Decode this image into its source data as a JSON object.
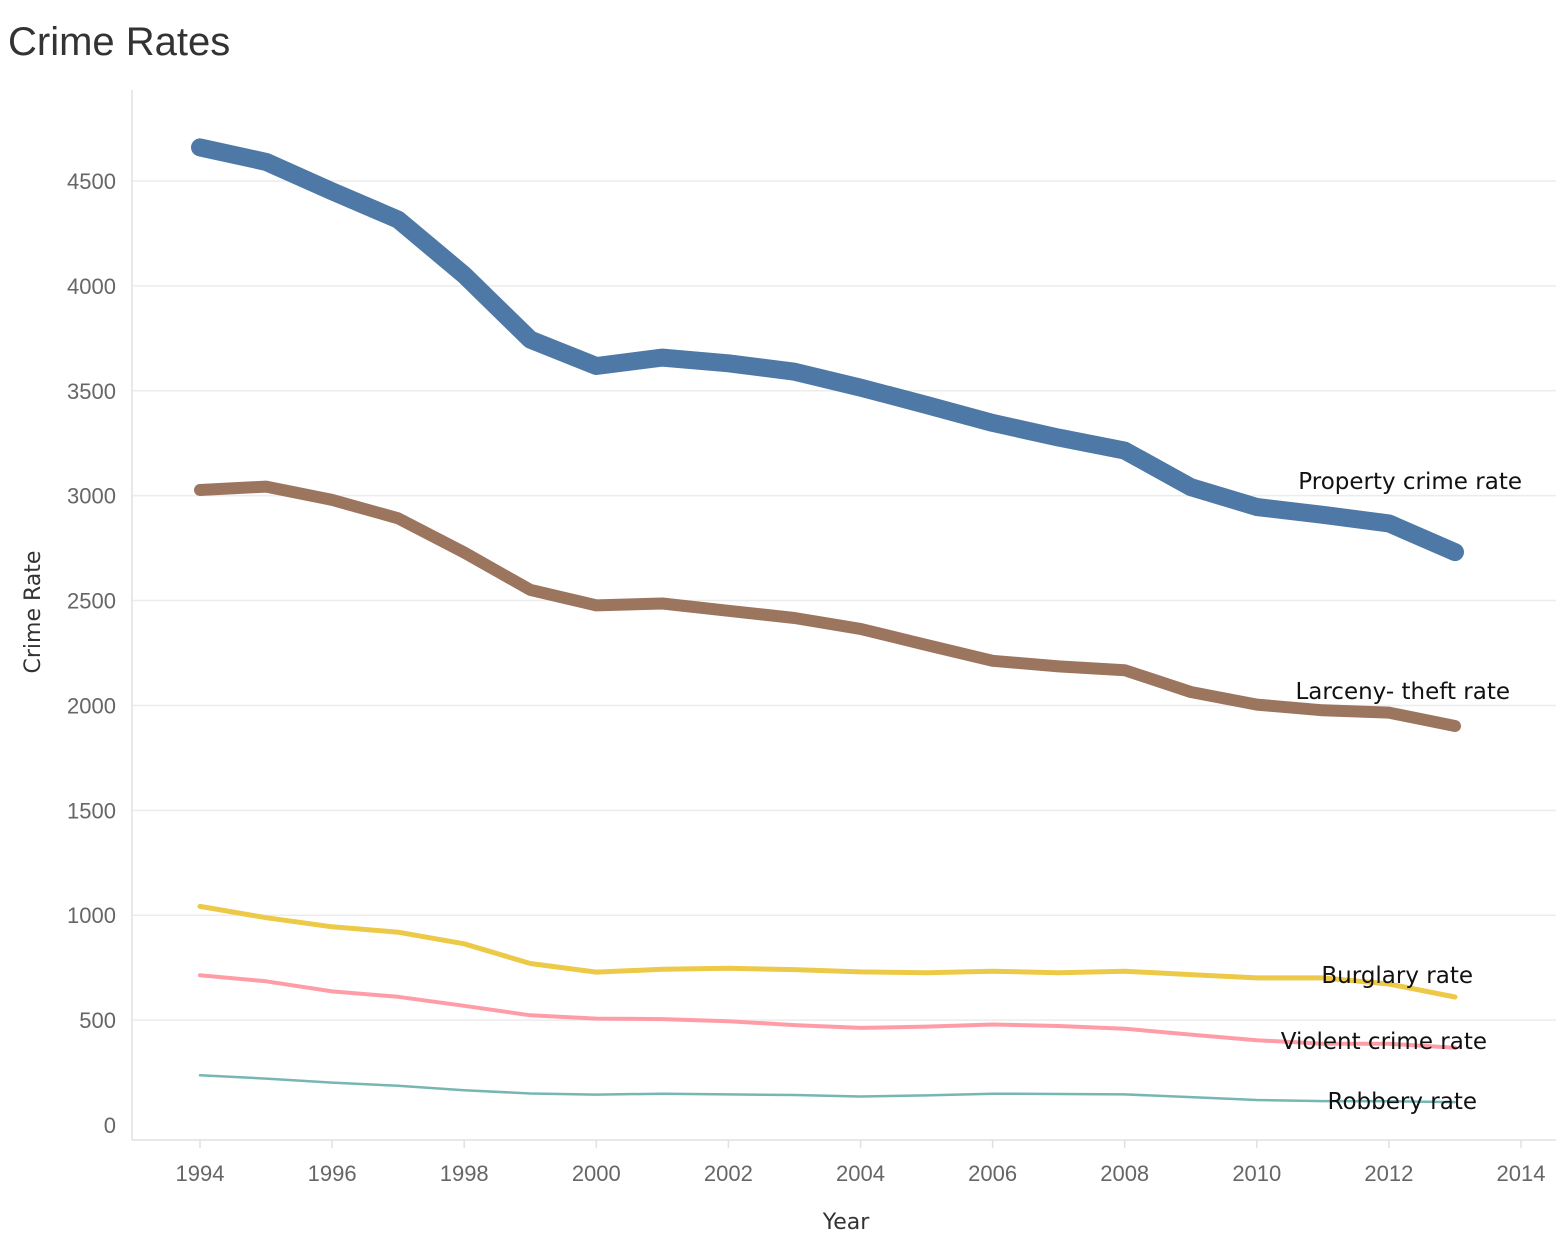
{
  "chart_data": {
    "type": "line",
    "title": "Crime Rates",
    "xlabel": "Year",
    "ylabel": "Crime Rate",
    "x": [
      1994,
      1995,
      1996,
      1997,
      1998,
      1999,
      2000,
      2001,
      2002,
      2003,
      2004,
      2005,
      2006,
      2007,
      2008,
      2009,
      2010,
      2011,
      2012,
      2013
    ],
    "xlim": [
      1993,
      2014
    ],
    "ylim": [
      0,
      4650
    ],
    "x_ticks": [
      1994,
      1996,
      1998,
      2000,
      2002,
      2004,
      2006,
      2008,
      2010,
      2012,
      2014
    ],
    "y_ticks": [
      0,
      500,
      1000,
      1500,
      2000,
      2500,
      3000,
      3500,
      4000,
      4500
    ],
    "grid": true,
    "legend": "direct labels at line ends",
    "series": [
      {
        "name": "Property crime rate",
        "color": "#4e79a7",
        "values": [
          4660,
          4591,
          4451,
          4316,
          4052,
          3744,
          3618,
          3658,
          3631,
          3591,
          3515,
          3432,
          3347,
          3277,
          3215,
          3041,
          2946,
          2909,
          2868,
          2731
        ]
      },
      {
        "name": "Larceny- theft rate",
        "color": "#9c755f",
        "values": [
          3027,
          3043,
          2980,
          2892,
          2729,
          2551,
          2477,
          2486,
          2451,
          2417,
          2365,
          2288,
          2213,
          2186,
          2168,
          2064,
          2004,
          1977,
          1966,
          1902
        ]
      },
      {
        "name": "Burglary rate",
        "color": "#edc948",
        "values": [
          1042,
          988,
          945,
          919,
          864,
          770,
          729,
          742,
          747,
          741,
          730,
          726,
          733,
          726,
          733,
          717,
          701,
          701,
          672,
          610
        ]
      },
      {
        "name": "Violent crime rate",
        "color": "#ff9da7",
        "values": [
          714,
          685,
          637,
          611,
          568,
          523,
          507,
          505,
          495,
          476,
          463,
          469,
          479,
          472,
          459,
          431,
          404,
          387,
          387,
          368
        ]
      },
      {
        "name": "Robbery rate",
        "color": "#76b7b2",
        "values": [
          237,
          221,
          202,
          187,
          166,
          150,
          145,
          149,
          146,
          143,
          136,
          141,
          149,
          148,
          146,
          133,
          119,
          114,
          113,
          109
        ]
      }
    ]
  }
}
